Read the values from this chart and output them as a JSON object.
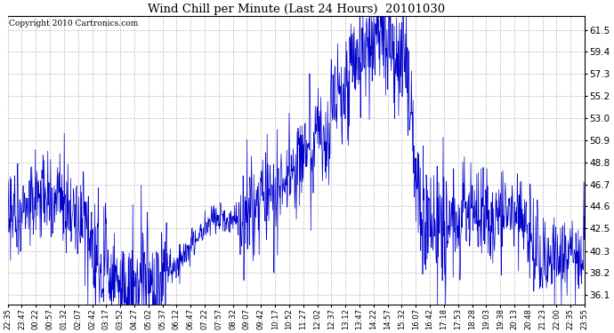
{
  "title": "Wind Chill per Minute (Last 24 Hours)  20101030",
  "copyright_text": "Copyright 2010 Cartronics.com",
  "line_color": "#0000cc",
  "background_color": "#ffffff",
  "plot_bg_color": "#ffffff",
  "grid_color": "#bbbbbb",
  "yticks": [
    36.1,
    38.2,
    40.3,
    42.5,
    44.6,
    46.7,
    48.8,
    50.9,
    53.0,
    55.2,
    57.3,
    59.4,
    61.5
  ],
  "ylim": [
    35.2,
    62.8
  ],
  "xtick_labels": [
    "22:35",
    "23:47",
    "00:22",
    "00:57",
    "01:32",
    "02:07",
    "02:42",
    "03:17",
    "03:52",
    "04:27",
    "05:02",
    "05:37",
    "06:12",
    "06:47",
    "07:22",
    "07:57",
    "08:32",
    "09:07",
    "09:42",
    "10:17",
    "10:52",
    "11:27",
    "12:02",
    "12:37",
    "13:12",
    "13:47",
    "14:22",
    "14:57",
    "15:32",
    "16:07",
    "16:42",
    "17:18",
    "17:53",
    "18:28",
    "19:03",
    "19:38",
    "20:13",
    "20:48",
    "21:23",
    "22:00",
    "22:35",
    "23:55"
  ],
  "figsize": [
    6.9,
    3.75
  ],
  "dpi": 100
}
